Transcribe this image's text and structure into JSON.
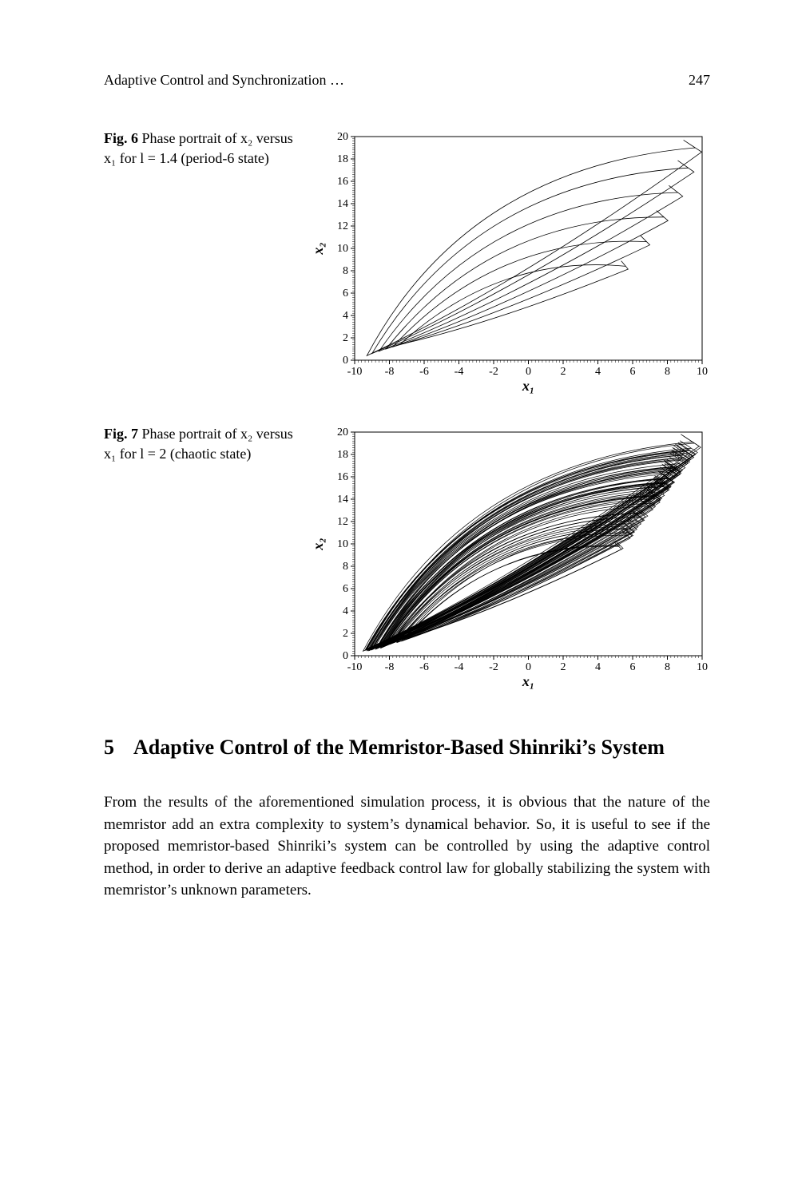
{
  "page": {
    "running_title": "Adaptive Control and Synchronization …",
    "page_number": "247"
  },
  "fig6": {
    "label_bold": "Fig. 6",
    "caption_rest": "  Phase portrait of x₂ versus x₁ for l = 1.4 (period-6 state)",
    "chart": {
      "type": "line",
      "xlim": [
        -10,
        10
      ],
      "ylim": [
        0,
        20
      ],
      "xticks": [
        -10,
        -8,
        -6,
        -4,
        -2,
        0,
        2,
        4,
        6,
        8,
        10
      ],
      "yticks": [
        0,
        2,
        4,
        6,
        8,
        10,
        12,
        14,
        16,
        18,
        20
      ],
      "xlabel": "x₁",
      "ylabel": "x₂",
      "tick_fontsize": 14,
      "label_fontsize": 18,
      "line_color": "#000000",
      "line_width": 0.8,
      "background_color": "#ffffff",
      "border_color": "#000000",
      "loops": [
        {
          "tip": [
            -9.3,
            0.4
          ],
          "peak": [
            9.6,
            19.0
          ]
        },
        {
          "tip": [
            -9.0,
            0.6
          ],
          "peak": [
            9.2,
            17.2
          ]
        },
        {
          "tip": [
            -8.6,
            0.8
          ],
          "peak": [
            8.6,
            15.0
          ]
        },
        {
          "tip": [
            -8.2,
            1.0
          ],
          "peak": [
            7.8,
            12.8
          ]
        },
        {
          "tip": [
            -7.8,
            1.2
          ],
          "peak": [
            6.8,
            10.6
          ]
        },
        {
          "tip": [
            -7.4,
            1.4
          ],
          "peak": [
            5.6,
            8.4
          ]
        }
      ]
    }
  },
  "fig7": {
    "label_bold": "Fig. 7",
    "caption_rest": "  Phase portrait of x₂ versus x₁ for l = 2 (chaotic state)",
    "chart": {
      "type": "line",
      "xlim": [
        -10,
        10
      ],
      "ylim": [
        0,
        20
      ],
      "xticks": [
        -10,
        -8,
        -6,
        -4,
        -2,
        0,
        2,
        4,
        6,
        8,
        10
      ],
      "yticks": [
        0,
        2,
        4,
        6,
        8,
        10,
        12,
        14,
        16,
        18,
        20
      ],
      "xlabel": "x₁",
      "ylabel": "x₂",
      "tick_fontsize": 14,
      "label_fontsize": 18,
      "line_color": "#000000",
      "line_width": 0.7,
      "background_color": "#ffffff",
      "border_color": "#000000",
      "n_loops": 60,
      "tip_x_range": [
        -9.6,
        -6.4
      ],
      "tip_y_range": [
        0.3,
        2.2
      ],
      "peak_x_range": [
        4.0,
        9.7
      ],
      "peak_y_range": [
        7.0,
        19.5
      ]
    }
  },
  "section": {
    "number": "5",
    "title": "Adaptive Control of the Memristor-Based Shinriki’s System"
  },
  "body": {
    "para1": "From the results of the aforementioned simulation process, it is obvious that the nature of the memristor add an extra complexity to system’s dynamical behavior. So, it is useful to see if the proposed memristor-based Shinriki’s system can be controlled by using the adaptive control method, in order to derive an adaptive feedback control law for globally stabilizing the system with memristor’s unknown parameters."
  }
}
